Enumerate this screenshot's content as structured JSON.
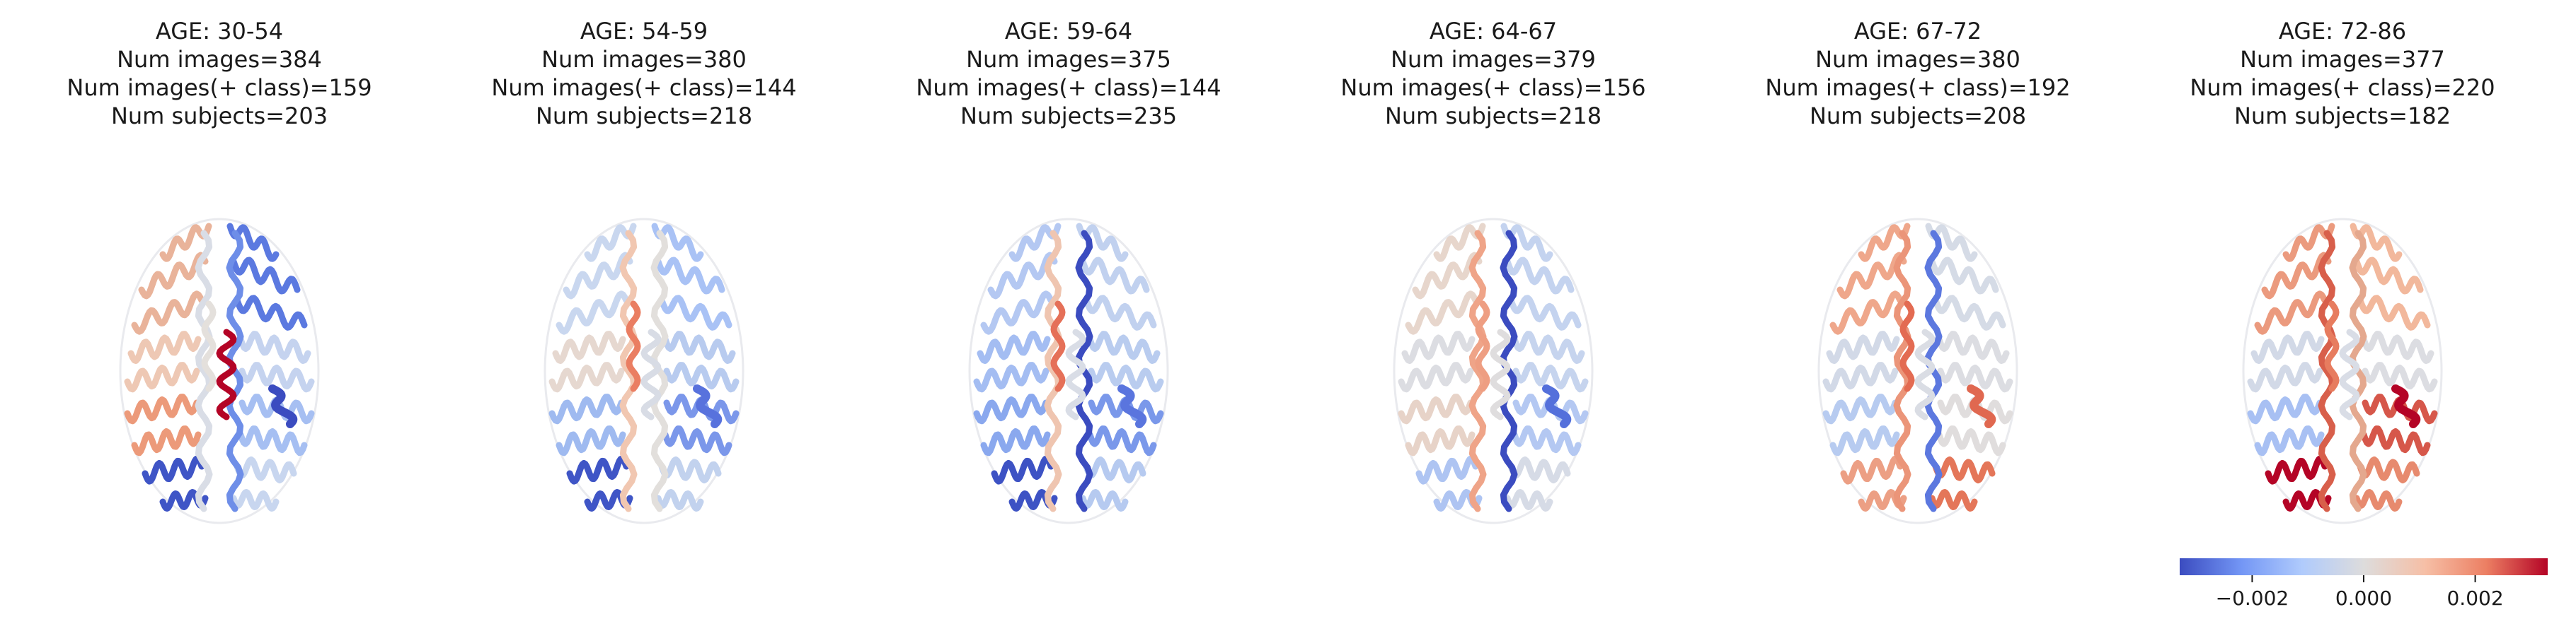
{
  "panels": [
    {
      "age": "AGE: 30-54",
      "num_images": "Num images=384",
      "num_images_pos": "Num images(+ class)=159",
      "num_subjects": "Num subjects=203",
      "regions": {
        "lf": "#e9b39a",
        "rf": "#5b79e0",
        "lc": "#eec8b4",
        "rc": "#c5d3ef",
        "lp": "#ec9a7a",
        "rp": "#a6bff2",
        "lo": "#3f55c6",
        "ro": "#c8d6ef",
        "med_l": "#d9dde6",
        "med_r": "#6e8ee8",
        "hot_l": "#e4e0dc",
        "hot_r": "#b40426",
        "spot": "#3b4cc0"
      }
    },
    {
      "age": "AGE: 54-59",
      "num_images": "Num images=380",
      "num_images_pos": "Num images(+ class)=144",
      "num_subjects": "Num subjects=218",
      "regions": {
        "lf": "#c9d7ef",
        "rf": "#a9c2f5",
        "lc": "#e6d8d0",
        "rc": "#b8cbef",
        "lp": "#9fbaf0",
        "rp": "#7b97ea",
        "lo": "#3f55c6",
        "ro": "#c2d2ee",
        "med_l": "#f1c7b1",
        "med_r": "#e2dfdc",
        "hot_l": "#ea7e62",
        "hot_r": "#d8dce5",
        "spot": "#5872dd"
      }
    },
    {
      "age": "AGE: 59-64",
      "num_images": "Num images=375",
      "num_images_pos": "Num images(+ class)=144",
      "num_subjects": "Num subjects=235",
      "regions": {
        "lf": "#b4c8f2",
        "rf": "#c1d1ef",
        "lc": "#a4bdf2",
        "rc": "#b9ccef",
        "lp": "#8aa8ee",
        "rp": "#7a98ea",
        "lo": "#3d52c4",
        "ro": "#b6caf0",
        "med_l": "#efc5b0",
        "med_r": "#3b4cc0",
        "hot_l": "#e57058",
        "hot_r": "#d9dde6",
        "spot": "#5a75de"
      }
    },
    {
      "age": "AGE: 64-67",
      "num_images": "Num images=379",
      "num_images_pos": "Num images(+ class)=156",
      "num_subjects": "Num subjects=218",
      "regions": {
        "lf": "#e7d6cc",
        "rf": "#c4d3ef",
        "lc": "#dcdde2",
        "rc": "#c6d4ee",
        "lp": "#e7d3c8",
        "rp": "#b4c8f2",
        "lo": "#aec4f2",
        "ro": "#d6dbe6",
        "med_l": "#efa488",
        "med_r": "#3b4cc0",
        "hot_l": "#ee9e82",
        "hot_r": "#dfddde",
        "spot": "#5470db"
      }
    },
    {
      "age": "AGE: 67-72",
      "num_images": "Num images=380",
      "num_images_pos": "Num images(+ class)=192",
      "num_subjects": "Num subjects=208",
      "regions": {
        "lf": "#efa78b",
        "rf": "#d5dbe6",
        "lc": "#d2d9e7",
        "rc": "#dcdde2",
        "lp": "#b7cbf0",
        "rp": "#e0dddd",
        "lo": "#ec9f84",
        "ro": "#e47659",
        "med_l": "#eb9579",
        "med_r": "#5c78df",
        "hot_l": "#e36b52",
        "hot_r": "#dadde4",
        "spot": "#e06850"
      }
    },
    {
      "age": "AGE: 72-86",
      "num_images": "Num images=377",
      "num_images_pos": "Num images(+ class)=220",
      "num_subjects": "Num subjects=182",
      "regions": {
        "lf": "#eb9a7e",
        "rf": "#f2b89c",
        "lc": "#d2d9e7",
        "rc": "#dcdde2",
        "lp": "#a8c0f3",
        "rp": "#d6574a",
        "lo": "#b40426",
        "ro": "#e78a6e",
        "med_l": "#d85f4b",
        "med_r": "#e4a88e",
        "hot_l": "#e77c5f",
        "hot_r": "#d9dde6",
        "spot": "#b40426"
      }
    }
  ],
  "colorbar": {
    "ticks": [
      {
        "value": -0.002,
        "label": "−0.002"
      },
      {
        "value": 0.0,
        "label": "0.000"
      },
      {
        "value": 0.002,
        "label": "0.002"
      }
    ],
    "range": [
      -0.0033,
      0.0033
    ],
    "colormap": [
      "#3b4cc0",
      "#7396f5",
      "#b0cbfc",
      "#dddcdc",
      "#f6bfa6",
      "#ec7f63",
      "#b40426"
    ]
  }
}
